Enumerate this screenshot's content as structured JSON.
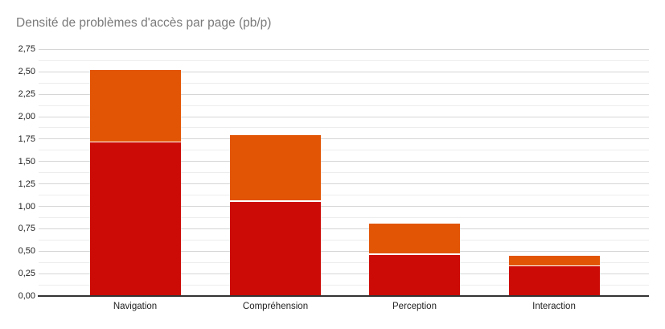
{
  "title": "Densité de problèmes d'accès par page (pb/p)",
  "chart_data": {
    "type": "bar",
    "stacked": true,
    "title": "Densité de problèmes d'accès par page (pb/p)",
    "categories": [
      "Navigation",
      "Compréhension",
      "Perception",
      "Interaction"
    ],
    "series": [
      {
        "name": "red-bottom-segment",
        "color": "#cc0b06",
        "values": [
          1.71,
          1.05,
          0.46,
          0.33
        ]
      },
      {
        "name": "orange-top-segment",
        "color": "#e25505",
        "values": [
          0.81,
          0.74,
          0.35,
          0.12
        ]
      }
    ],
    "totals": [
      2.52,
      1.79,
      0.81,
      0.45
    ],
    "xlabel": "",
    "ylabel": "",
    "ylim": [
      0,
      2.75
    ],
    "y_tick_step": 0.25,
    "y_minor_step": 0.125,
    "y_tick_labels": [
      "0,00",
      "0,25",
      "0,50",
      "0,75",
      "1,00",
      "1,25",
      "1,50",
      "1,75",
      "2,00",
      "2,25",
      "2,50",
      "2,75"
    ],
    "decimal_separator": ",",
    "grid": true,
    "legend": "none"
  },
  "colors": {
    "background": "#ffffff",
    "title_text": "#7a7a7a",
    "axis_text": "#222222",
    "major_gridline": "#d6d6d6",
    "minor_gridline": "#ededed",
    "baseline": "#333333",
    "series_red": "#cc0b06",
    "series_orange": "#e25505"
  }
}
